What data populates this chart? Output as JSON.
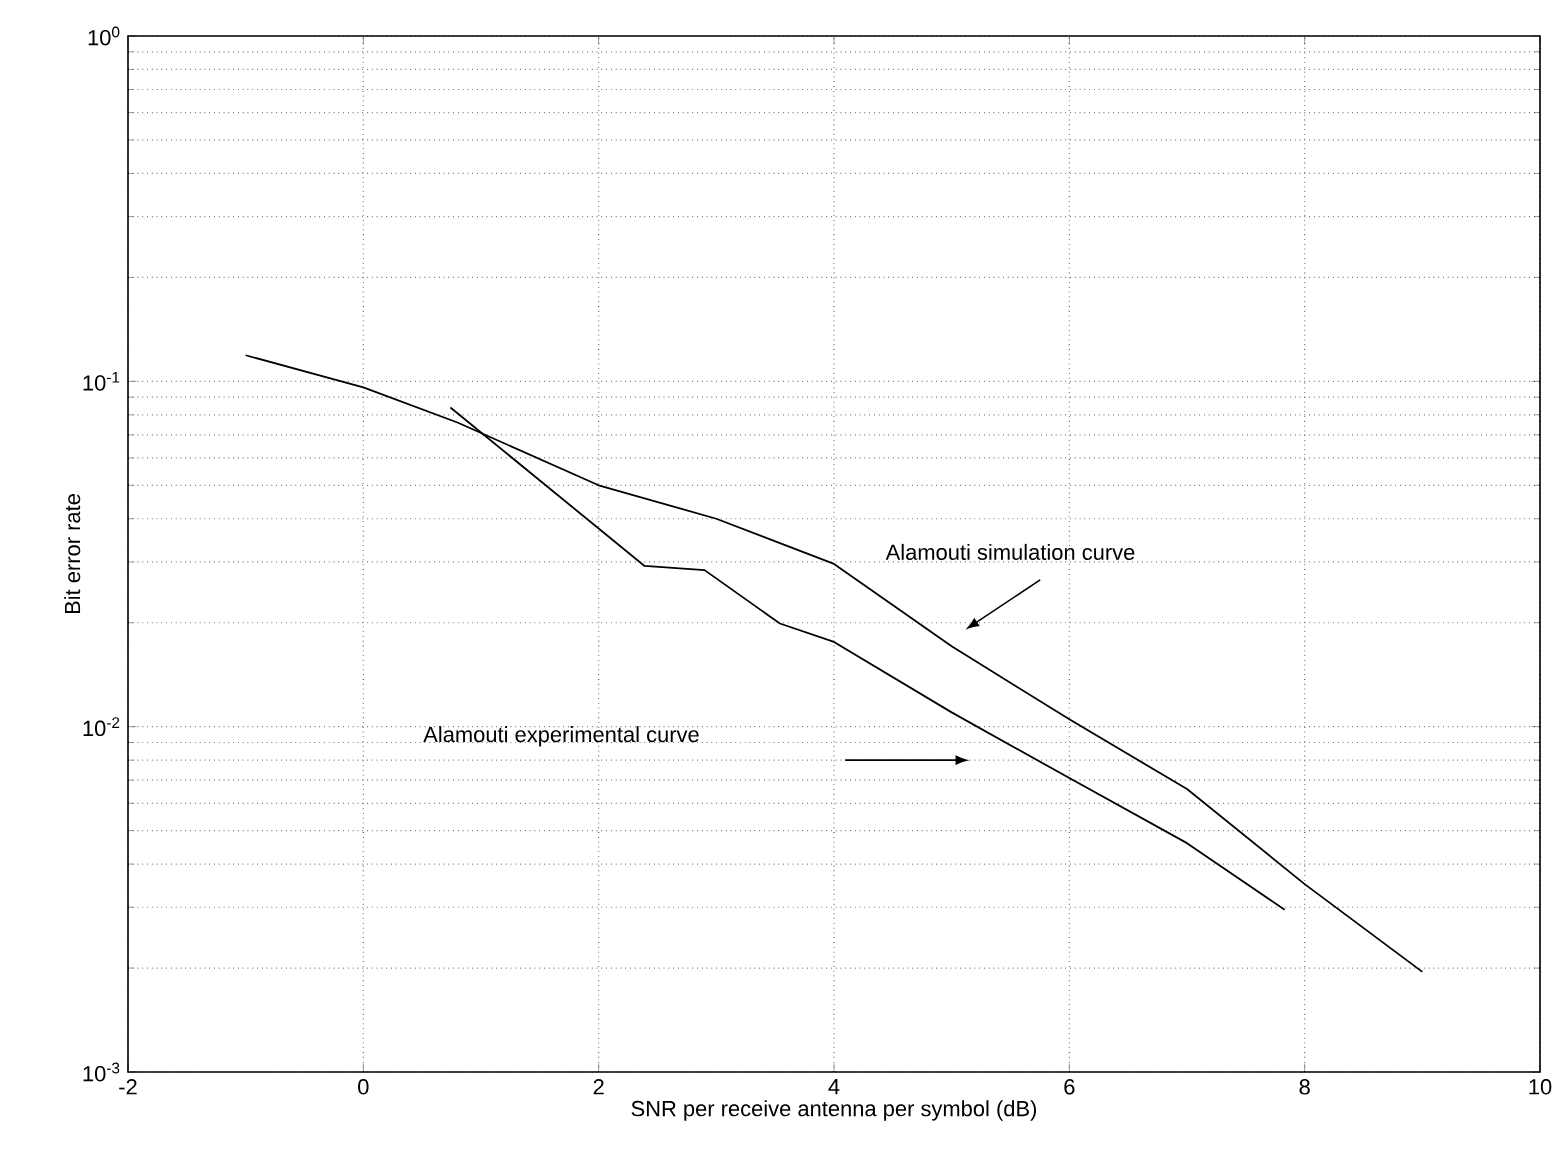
{
  "chart_data": {
    "type": "line",
    "xlabel": "SNR per receive antenna per symbol (dB)",
    "ylabel": "Bit error rate",
    "series": [
      {
        "color": "#000000",
        "x": [
          -1,
          0,
          0.8,
          2,
          3,
          4,
          5,
          6,
          7,
          8,
          9
        ],
        "values": [
          0.119,
          0.096,
          0.076,
          0.05,
          0.04,
          0.0296,
          0.0171,
          0.0105,
          0.0066,
          0.0035,
          0.00195
        ]
      },
      {
        "color": "#000000",
        "x": [
          0.74,
          2.39,
          2.9,
          3.54,
          4,
          5,
          6,
          7,
          7.83
        ],
        "values": [
          0.084,
          0.0292,
          0.0284,
          0.0199,
          0.0176,
          0.011,
          0.0071,
          0.0046,
          0.00295
        ]
      }
    ],
    "annotations": [
      "Alamouti simulation curve",
      "Alamouti experimental curve"
    ],
    "xlim": [
      -2,
      10
    ],
    "xticks": [
      -2,
      0,
      2,
      4,
      6,
      8,
      10
    ],
    "ylim": [
      0.001,
      1
    ],
    "yticks": [
      {
        "value": 0.001,
        "label": "10$^{-3}$"
      },
      {
        "value": 0.01,
        "label": "10$^{-2}$"
      },
      {
        "value": 0.1,
        "label": "10$^{-1}$"
      },
      {
        "value": 1,
        "label": "10$^{0}$"
      }
    ],
    "log": "y",
    "grid": true,
    "marker": "none",
    "line_style": "solid"
  }
}
